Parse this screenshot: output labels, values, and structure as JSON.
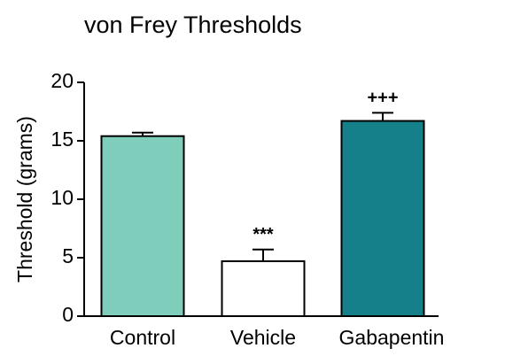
{
  "chart_data": {
    "type": "bar",
    "title": "von Frey Thresholds",
    "y_label": "Threshold (grams)",
    "categories": [
      "Control",
      "Vehicle",
      "Gabapentin"
    ],
    "values": [
      15.4,
      4.7,
      16.7
    ],
    "errors": [
      0.3,
      1.0,
      0.7
    ],
    "annotations": [
      null,
      "***",
      "+++"
    ],
    "colors": [
      "#7fcdbb",
      "#ffffff",
      "#16808a"
    ],
    "ylim": [
      0,
      20
    ],
    "yticks": [
      0,
      5,
      10,
      15,
      20
    ],
    "grid": false
  }
}
